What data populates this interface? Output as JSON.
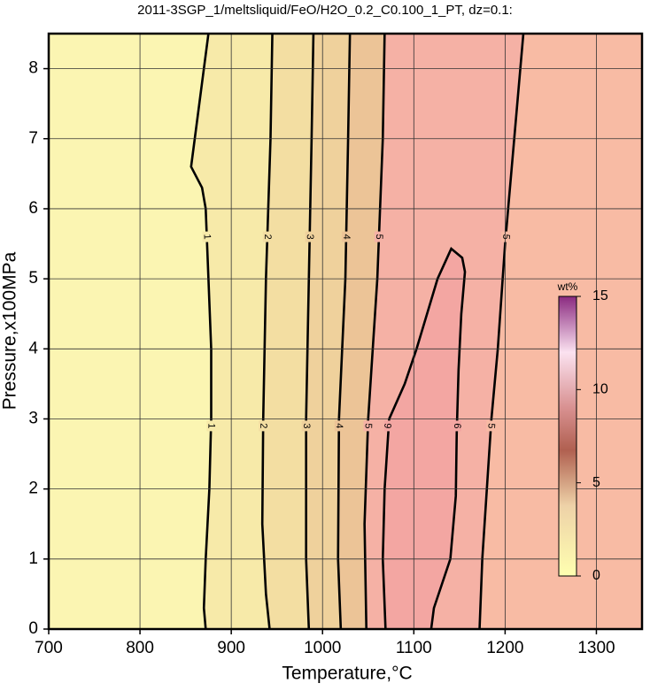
{
  "chart_data": {
    "type": "contour",
    "title": "2011-3SGP_1/meltsliquid/FeO/H2O_0.2_C0.100_1_PT, dz=0.1:",
    "x_label": "Temperature,°C",
    "y_label": "Pressure,x100MPa",
    "xlim": [
      700,
      1350
    ],
    "ylim": [
      0,
      8.5
    ],
    "xticks": [
      700,
      800,
      900,
      1000,
      1100,
      1200,
      1300
    ],
    "yticks": [
      0,
      1,
      2,
      3,
      4,
      5,
      6,
      7,
      8
    ],
    "grid": true,
    "background": "#fbf5b2",
    "contours": [
      {
        "level": 1,
        "color": "#f7eaa9",
        "x": [
          875,
          862,
          856,
          868,
          872,
          875,
          878,
          878,
          876,
          872,
          870,
          872
        ],
        "y": [
          8.5,
          7.2,
          6.6,
          6.3,
          6.0,
          5.0,
          4.0,
          3.0,
          2.0,
          1.0,
          0.3,
          0
        ]
      },
      {
        "level": 2,
        "color": "#f3dea2",
        "x": [
          945,
          943,
          938,
          935,
          934,
          938,
          942
        ],
        "y": [
          8.5,
          7,
          5,
          3,
          1.5,
          0.5,
          0
        ]
      },
      {
        "level": 3,
        "color": "#efd19c",
        "x": [
          990,
          988,
          985,
          982,
          982,
          985
        ],
        "y": [
          8.5,
          7,
          5,
          3,
          1,
          0
        ]
      },
      {
        "level": 4,
        "color": "#ecc497",
        "x": [
          1030,
          1028,
          1025,
          1018,
          1017,
          1020
        ],
        "y": [
          8.5,
          7,
          5,
          3,
          1,
          0
        ]
      },
      {
        "level": 5,
        "color": "#f5b1a5",
        "x": [
          1068,
          1066,
          1060,
          1050,
          1046,
          1048
        ],
        "y": [
          8.5,
          7,
          5,
          3,
          1.5,
          0
        ]
      },
      {
        "level": 6,
        "color": "#f3a6a2",
        "x": [
          1069,
          1066,
          1068,
          1073,
          1090,
          1103,
          1126,
          1141,
          1153,
          1156,
          1152,
          1149,
          1147,
          1146,
          1140,
          1122,
          1119
        ],
        "y": [
          0,
          1,
          2,
          3,
          3.5,
          4,
          5,
          5.43,
          5.3,
          5.1,
          4.5,
          3.7,
          2.8,
          1.9,
          1.0,
          0.3,
          0
        ]
      },
      {
        "level": 5,
        "color": "#f8bba4",
        "x": [
          1220,
          1210,
          1200,
          1192,
          1185,
          1180,
          1175,
          1172
        ],
        "y": [
          8.5,
          7,
          5.5,
          4,
          3,
          2,
          1,
          0
        ]
      }
    ],
    "colorbar": {
      "label": "wt%",
      "lim": [
        0,
        15
      ],
      "ticks": [
        0,
        5,
        10,
        15
      ]
    }
  }
}
